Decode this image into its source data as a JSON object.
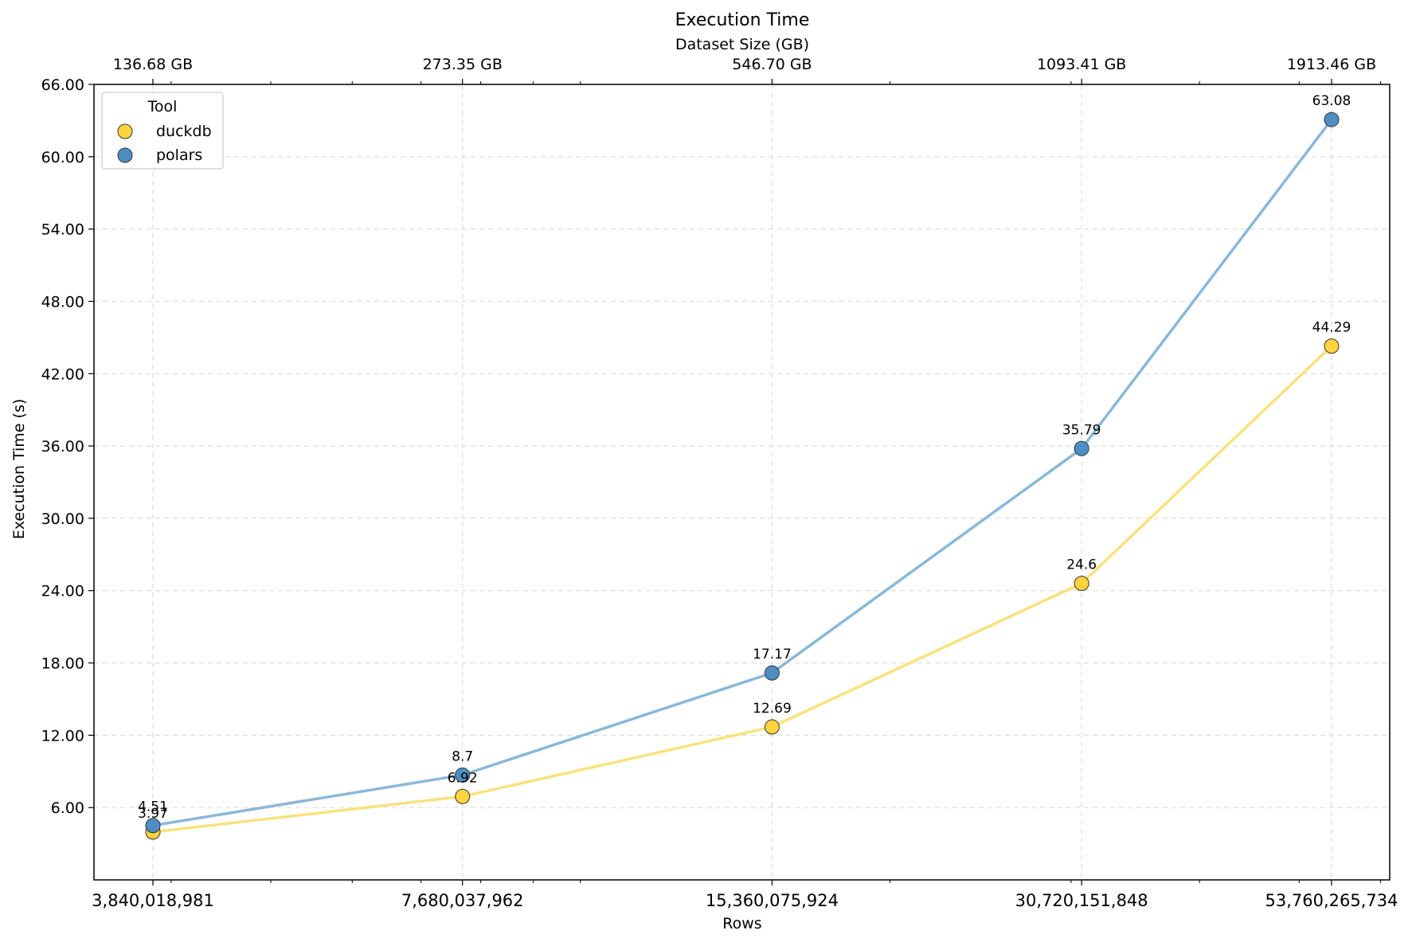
{
  "chart_data": {
    "type": "line",
    "title": "Execution Time",
    "top_axis_label": "Dataset Size (GB)",
    "xlabel": "Rows",
    "ylabel": "Execution Time (s)",
    "x_scale": "log",
    "x": [
      3840018981,
      7680037962,
      15360075924,
      30720151848,
      53760265734
    ],
    "x_tick_labels": [
      "3,840,018,981",
      "7,680,037,962",
      "15,360,075,924",
      "30,720,151,848",
      "53,760,265,734"
    ],
    "top_tick_labels": [
      "136.68 GB",
      "273.35 GB",
      "546.70 GB",
      "1093.41 GB",
      "1913.46 GB"
    ],
    "ylim": [
      0,
      66
    ],
    "y_ticks": [
      6,
      12,
      18,
      24,
      30,
      36,
      42,
      48,
      54,
      60,
      66
    ],
    "y_tick_labels": [
      "6.00",
      "12.00",
      "18.00",
      "24.00",
      "30.00",
      "36.00",
      "42.00",
      "48.00",
      "54.00",
      "60.00",
      "66.00"
    ],
    "grid": true,
    "legend": {
      "title": "Tool",
      "position": "top-left"
    },
    "series": [
      {
        "name": "duckdb",
        "values": [
          3.97,
          6.92,
          12.69,
          24.6,
          44.29
        ],
        "labels": [
          "3.97",
          "6.92",
          "12.69",
          "24.6",
          "44.29"
        ],
        "line_color": "#f9e27d",
        "marker_color": "#fdd43e"
      },
      {
        "name": "polars",
        "values": [
          4.51,
          8.7,
          17.17,
          35.79,
          63.08
        ],
        "labels": [
          "4.51",
          "8.7",
          "17.17",
          "35.79",
          "63.08"
        ],
        "line_color": "#8ab8d8",
        "marker_color": "#4d8fc4"
      }
    ]
  }
}
